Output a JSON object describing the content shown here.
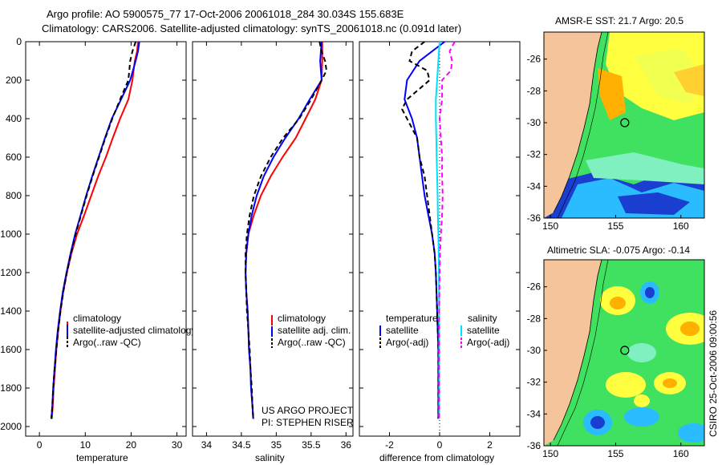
{
  "header": {
    "line1": "Argo profile: AO 5900575_77 17-Oct-2006 20061018_284 30.034S 155.683E",
    "line2": "Climatology: CARS2006. Satellite-adjusted climatology: synTS_20061018.nc (0.091d later)"
  },
  "chart_data": [
    {
      "id": "temperature",
      "type": "line",
      "xlabel": "temperature",
      "xlim": [
        -3,
        32
      ],
      "xticks": [
        0,
        10,
        20,
        30
      ],
      "ylim": [
        2050,
        0
      ],
      "yticks": [
        0,
        200,
        400,
        600,
        800,
        1000,
        1200,
        1400,
        1600,
        1800,
        2000
      ],
      "legend": [
        "climatology",
        "satellite-adjusted climatology",
        "Argo(..raw -QC)"
      ],
      "series": [
        {
          "name": "climatology",
          "color": "#ff0000",
          "dash": "",
          "points": [
            [
              21.5,
              0
            ],
            [
              21.3,
              50
            ],
            [
              20.8,
              100
            ],
            [
              20.3,
              200
            ],
            [
              19.4,
              300
            ],
            [
              17.6,
              400
            ],
            [
              16.0,
              500
            ],
            [
              14.5,
              600
            ],
            [
              12.8,
              700
            ],
            [
              11.3,
              800
            ],
            [
              9.8,
              900
            ],
            [
              8.2,
              1000
            ],
            [
              7.0,
              1100
            ],
            [
              6.0,
              1200
            ],
            [
              5.2,
              1300
            ],
            [
              4.6,
              1400
            ],
            [
              4.1,
              1500
            ],
            [
              3.7,
              1600
            ],
            [
              3.4,
              1700
            ],
            [
              3.1,
              1800
            ],
            [
              2.9,
              1900
            ],
            [
              2.7,
              1960
            ]
          ]
        },
        {
          "name": "satellite-adjusted climatology",
          "color": "#0000ff",
          "dash": "",
          "points": [
            [
              21.8,
              0
            ],
            [
              21.5,
              50
            ],
            [
              21.0,
              100
            ],
            [
              19.8,
              200
            ],
            [
              17.8,
              300
            ],
            [
              15.8,
              400
            ],
            [
              14.3,
              500
            ],
            [
              12.9,
              600
            ],
            [
              11.5,
              700
            ],
            [
              10.2,
              800
            ],
            [
              9.0,
              900
            ],
            [
              7.8,
              1000
            ],
            [
              6.8,
              1100
            ],
            [
              5.9,
              1200
            ],
            [
              5.1,
              1300
            ],
            [
              4.5,
              1400
            ],
            [
              4.0,
              1500
            ],
            [
              3.6,
              1600
            ],
            [
              3.3,
              1700
            ],
            [
              3.0,
              1800
            ],
            [
              2.8,
              1900
            ],
            [
              2.6,
              1960
            ]
          ]
        },
        {
          "name": "Argo(..raw -QC)",
          "color": "#000000",
          "dash": "6,4",
          "points": [
            [
              21.0,
              0
            ],
            [
              20.3,
              50
            ],
            [
              19.8,
              100
            ],
            [
              19.4,
              200
            ],
            [
              17.6,
              300
            ],
            [
              15.9,
              400
            ],
            [
              14.4,
              500
            ],
            [
              13.0,
              600
            ],
            [
              11.6,
              700
            ],
            [
              10.3,
              800
            ],
            [
              9.1,
              900
            ],
            [
              7.9,
              1000
            ],
            [
              6.9,
              1100
            ],
            [
              6.0,
              1200
            ],
            [
              5.2,
              1300
            ],
            [
              4.6,
              1400
            ],
            [
              4.1,
              1500
            ],
            [
              3.7,
              1600
            ],
            [
              3.3,
              1700
            ],
            [
              3.0,
              1800
            ],
            [
              2.8,
              1900
            ],
            [
              2.6,
              1960
            ]
          ]
        }
      ]
    },
    {
      "id": "salinity",
      "type": "line",
      "xlabel": "salinity",
      "xlim": [
        33.8,
        36.1
      ],
      "xticks": [
        34,
        34.5,
        35,
        35.5,
        36
      ],
      "ylim": [
        2050,
        0
      ],
      "legend": [
        "climatology",
        "satellite adj. clim.",
        "Argo(..raw -QC)"
      ],
      "credits": [
        "US ARGO PROJECT",
        "PI: STEPHEN RISER"
      ],
      "series": [
        {
          "name": "climatology",
          "color": "#ff0000",
          "dash": "",
          "points": [
            [
              35.66,
              0
            ],
            [
              35.66,
              100
            ],
            [
              35.65,
              200
            ],
            [
              35.56,
              300
            ],
            [
              35.42,
              400
            ],
            [
              35.28,
              500
            ],
            [
              35.09,
              600
            ],
            [
              34.92,
              700
            ],
            [
              34.78,
              800
            ],
            [
              34.68,
              900
            ],
            [
              34.6,
              1000
            ],
            [
              34.57,
              1100
            ],
            [
              34.56,
              1200
            ],
            [
              34.57,
              1300
            ],
            [
              34.59,
              1400
            ],
            [
              34.6,
              1500
            ],
            [
              34.61,
              1600
            ],
            [
              34.63,
              1700
            ],
            [
              34.64,
              1800
            ],
            [
              34.66,
              1900
            ],
            [
              34.67,
              1960
            ]
          ]
        },
        {
          "name": "satellite adj. clim.",
          "color": "#0000ff",
          "dash": "",
          "points": [
            [
              35.65,
              0
            ],
            [
              35.63,
              100
            ],
            [
              35.65,
              200
            ],
            [
              35.48,
              300
            ],
            [
              35.32,
              400
            ],
            [
              35.13,
              500
            ],
            [
              34.96,
              600
            ],
            [
              34.82,
              700
            ],
            [
              34.72,
              800
            ],
            [
              34.65,
              900
            ],
            [
              34.6,
              1000
            ],
            [
              34.57,
              1100
            ],
            [
              34.56,
              1200
            ],
            [
              34.57,
              1300
            ],
            [
              34.59,
              1400
            ],
            [
              34.6,
              1500
            ],
            [
              34.61,
              1600
            ],
            [
              34.63,
              1700
            ],
            [
              34.64,
              1800
            ],
            [
              34.66,
              1900
            ],
            [
              34.67,
              1960
            ]
          ]
        },
        {
          "name": "Argo(..raw -QC)",
          "color": "#000000",
          "dash": "6,4",
          "points": [
            [
              35.62,
              0
            ],
            [
              35.65,
              50
            ],
            [
              35.7,
              100
            ],
            [
              35.72,
              150
            ],
            [
              35.65,
              200
            ],
            [
              35.5,
              300
            ],
            [
              35.33,
              400
            ],
            [
              35.1,
              500
            ],
            [
              34.92,
              600
            ],
            [
              34.78,
              700
            ],
            [
              34.68,
              800
            ],
            [
              34.62,
              900
            ],
            [
              34.58,
              1000
            ],
            [
              34.56,
              1100
            ],
            [
              34.56,
              1200
            ],
            [
              34.57,
              1300
            ],
            [
              34.58,
              1400
            ],
            [
              34.6,
              1500
            ],
            [
              34.62,
              1600
            ],
            [
              34.63,
              1700
            ],
            [
              34.65,
              1800
            ],
            [
              34.66,
              1900
            ],
            [
              34.67,
              1960
            ]
          ]
        }
      ]
    },
    {
      "id": "difference",
      "type": "line",
      "xlabel": "difference from climatology",
      "xlim": [
        -3.2,
        3.2
      ],
      "xticks": [
        -2,
        0,
        2
      ],
      "ylim": [
        2050,
        0
      ],
      "zero_line": true,
      "legend_left_title": "temperature",
      "legend_right_title": "salinity",
      "legend": [
        "satellite",
        "Argo(-adj)",
        "satellite",
        "Argo(-adj)"
      ],
      "series": [
        {
          "name": "temperature satellite",
          "color": "#0000ff",
          "dash": "",
          "points": [
            [
              0.2,
              0
            ],
            [
              -0.8,
              100
            ],
            [
              -1.3,
              200
            ],
            [
              -1.4,
              300
            ],
            [
              -1.1,
              400
            ],
            [
              -0.9,
              500
            ],
            [
              -0.8,
              600
            ],
            [
              -0.7,
              700
            ],
            [
              -0.6,
              800
            ],
            [
              -0.45,
              900
            ],
            [
              -0.3,
              1000
            ],
            [
              -0.2,
              1100
            ],
            [
              -0.15,
              1200
            ],
            [
              -0.1,
              1400
            ],
            [
              -0.05,
              1600
            ],
            [
              -0.05,
              1800
            ],
            [
              -0.05,
              1960
            ]
          ]
        },
        {
          "name": "temperature Argo(-adj)",
          "color": "#000000",
          "dash": "6,4",
          "points": [
            [
              -0.6,
              0
            ],
            [
              -1.1,
              50
            ],
            [
              -1.2,
              100
            ],
            [
              -0.5,
              150
            ],
            [
              -0.4,
              200
            ],
            [
              -1.3,
              300
            ],
            [
              -1.5,
              350
            ],
            [
              -0.9,
              500
            ],
            [
              -0.8,
              600
            ],
            [
              -0.6,
              700
            ],
            [
              -0.5,
              800
            ],
            [
              -0.4,
              900
            ],
            [
              -0.3,
              1000
            ],
            [
              -0.2,
              1100
            ],
            [
              -0.15,
              1200
            ],
            [
              -0.1,
              1400
            ],
            [
              -0.05,
              1600
            ],
            [
              -0.05,
              1800
            ],
            [
              -0.05,
              1960
            ]
          ]
        },
        {
          "name": "salinity satellite",
          "color": "#00e0ff",
          "dash": "",
          "points": [
            [
              0.0,
              0
            ],
            [
              -0.05,
              100
            ],
            [
              -0.1,
              200
            ],
            [
              -0.15,
              300
            ],
            [
              -0.15,
              400
            ],
            [
              -0.13,
              500
            ],
            [
              -0.12,
              600
            ],
            [
              -0.1,
              700
            ],
            [
              -0.08,
              800
            ],
            [
              -0.07,
              900
            ],
            [
              -0.05,
              1000
            ],
            [
              -0.04,
              1100
            ],
            [
              -0.03,
              1200
            ],
            [
              -0.02,
              1400
            ],
            [
              -0.02,
              1600
            ],
            [
              -0.02,
              1800
            ],
            [
              -0.02,
              1960
            ]
          ]
        },
        {
          "name": "salinity Argo(-adj)",
          "color": "#ff00ff",
          "dash": "6,4",
          "points": [
            [
              0.6,
              0
            ],
            [
              0.4,
              50
            ],
            [
              0.5,
              100
            ],
            [
              0.45,
              150
            ],
            [
              0.1,
              200
            ],
            [
              0.1,
              300
            ],
            [
              0.0,
              400
            ],
            [
              0.05,
              500
            ],
            [
              0.1,
              600
            ],
            [
              0.1,
              700
            ],
            [
              0.12,
              800
            ],
            [
              0.1,
              900
            ],
            [
              0.05,
              1000
            ],
            [
              0.02,
              1100
            ],
            [
              0.0,
              1200
            ],
            [
              -0.02,
              1400
            ],
            [
              -0.02,
              1600
            ],
            [
              -0.02,
              1800
            ],
            [
              -0.02,
              1960
            ]
          ]
        }
      ]
    },
    {
      "id": "sst_map",
      "type": "heatmap",
      "title": "AMSR-E SST: 21.7 Argo: 20.5",
      "xlim": [
        149.5,
        161.8
      ],
      "ylim": [
        -36,
        -24.3
      ],
      "xticks": [
        150,
        155,
        160
      ],
      "yticks": [
        -26,
        -28,
        -30,
        -32,
        -34,
        -36
      ],
      "marker": [
        155.7,
        -30.0
      ]
    },
    {
      "id": "sla_map",
      "type": "heatmap",
      "title": "Altimetric SLA: -0.075 Argo: -0.14",
      "xlim": [
        149.5,
        161.8
      ],
      "ylim": [
        -36,
        -24.3
      ],
      "xticks": [
        150,
        155,
        160
      ],
      "yticks": [
        -26,
        -28,
        -30,
        -32,
        -34,
        -36
      ],
      "marker": [
        155.7,
        -30.0
      ]
    }
  ],
  "footer": {
    "stamp": "CSIRO 25-Oct-2006 09:00:56"
  },
  "colors": {
    "land": "#f5c49a",
    "ocean_high": "#ffff40",
    "ocean_mid": "#40e060",
    "ocean_low": "#1a3fd0"
  }
}
